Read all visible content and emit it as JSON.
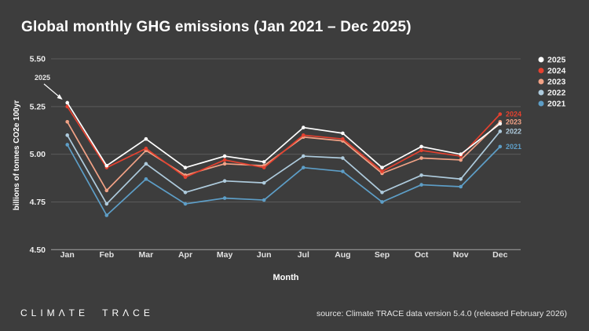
{
  "header": {
    "title": "Global monthly GHG emissions (Jan 2021 – Dec 2025)"
  },
  "chart_data": {
    "type": "line",
    "title": "Global monthly GHG emissions (Jan 2021 – Dec 2025)",
    "xlabel": "Month",
    "ylabel": "billions of tonnes CO2e 100yr",
    "ylim": [
      4.5,
      5.5
    ],
    "yticks": [
      5.5,
      5.25,
      5.0,
      4.75,
      4.5
    ],
    "grid": true,
    "legend_position": "right",
    "categories": [
      "Jan",
      "Feb",
      "Mar",
      "Apr",
      "May",
      "Jun",
      "Jul",
      "Aug",
      "Sep",
      "Oct",
      "Nov",
      "Dec"
    ],
    "annotation": {
      "text": "2025",
      "points_to": "first point of 2025 series"
    },
    "series": [
      {
        "name": "2025",
        "color": "#ffffff",
        "end_label": "",
        "values": [
          5.27,
          4.94,
          5.08,
          4.93,
          4.99,
          4.96,
          5.14,
          5.11,
          4.93,
          5.04,
          5.0,
          5.16
        ]
      },
      {
        "name": "2024",
        "color": "#e5412f",
        "end_label": "2024",
        "values": [
          5.25,
          4.93,
          5.03,
          4.88,
          4.97,
          4.93,
          5.1,
          5.08,
          4.91,
          5.02,
          4.99,
          5.21
        ]
      },
      {
        "name": "2023",
        "color": "#f2a286",
        "end_label": "2023",
        "values": [
          5.17,
          4.81,
          5.02,
          4.89,
          4.95,
          4.94,
          5.09,
          5.07,
          4.9,
          4.98,
          4.97,
          5.17
        ]
      },
      {
        "name": "2022",
        "color": "#aecbdd",
        "end_label": "2022",
        "values": [
          5.1,
          4.74,
          4.95,
          4.8,
          4.86,
          4.85,
          4.99,
          4.98,
          4.8,
          4.89,
          4.87,
          5.12
        ]
      },
      {
        "name": "2021",
        "color": "#5d9ec7",
        "end_label": "2021",
        "values": [
          5.05,
          4.68,
          4.87,
          4.74,
          4.77,
          4.76,
          4.93,
          4.91,
          4.75,
          4.84,
          4.83,
          5.04
        ]
      }
    ],
    "axis_colors": {
      "grid": "#5b5b5b",
      "baseline": "#989898",
      "tick_text": "#ededed",
      "label_text": "#ffffff"
    }
  },
  "footer": {
    "logo_text": "CLIMΛTE TRΛCE",
    "source_text": "source: Climate TRACE data version 5.4.0 (released February 2026)"
  }
}
